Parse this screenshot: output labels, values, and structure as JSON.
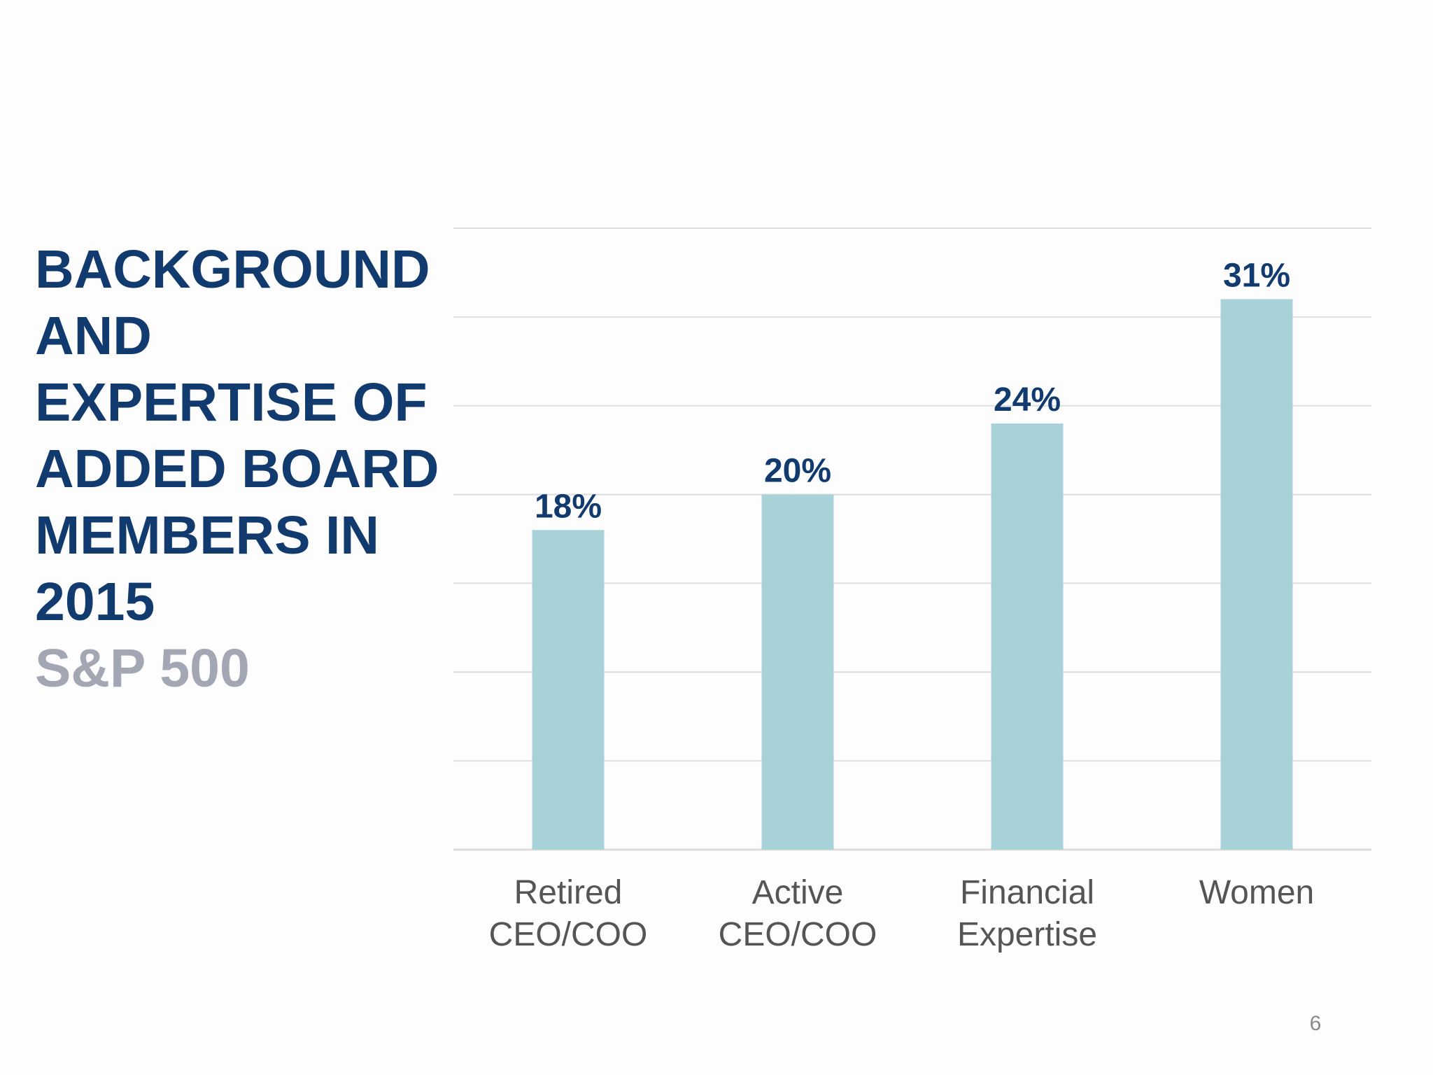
{
  "slide": {
    "title_lines": [
      "BACKGROUND",
      "AND",
      "EXPERTISE OF",
      "ADDED BOARD",
      "MEMBERS IN",
      "2015"
    ],
    "subtitle": "S&P 500",
    "page_number": "6"
  },
  "colors": {
    "title": "#113b6f",
    "subtitle": "#a3a7b3",
    "bar": "#a7d3d8",
    "data_label": "#113b6f",
    "category_label": "#555555",
    "gridline": "#dddddd"
  },
  "chart_data": {
    "type": "bar",
    "categories": [
      [
        "Retired",
        "CEO/COO"
      ],
      [
        "Active",
        "CEO/COO"
      ],
      [
        "Financial",
        "Expertise"
      ],
      [
        "Women"
      ]
    ],
    "values": [
      18,
      20,
      24,
      31
    ],
    "data_labels": [
      "18%",
      "20%",
      "24%",
      "31%"
    ],
    "ylim": [
      0,
      35
    ],
    "gridline_step": 5,
    "grid": true,
    "legend": "none"
  }
}
